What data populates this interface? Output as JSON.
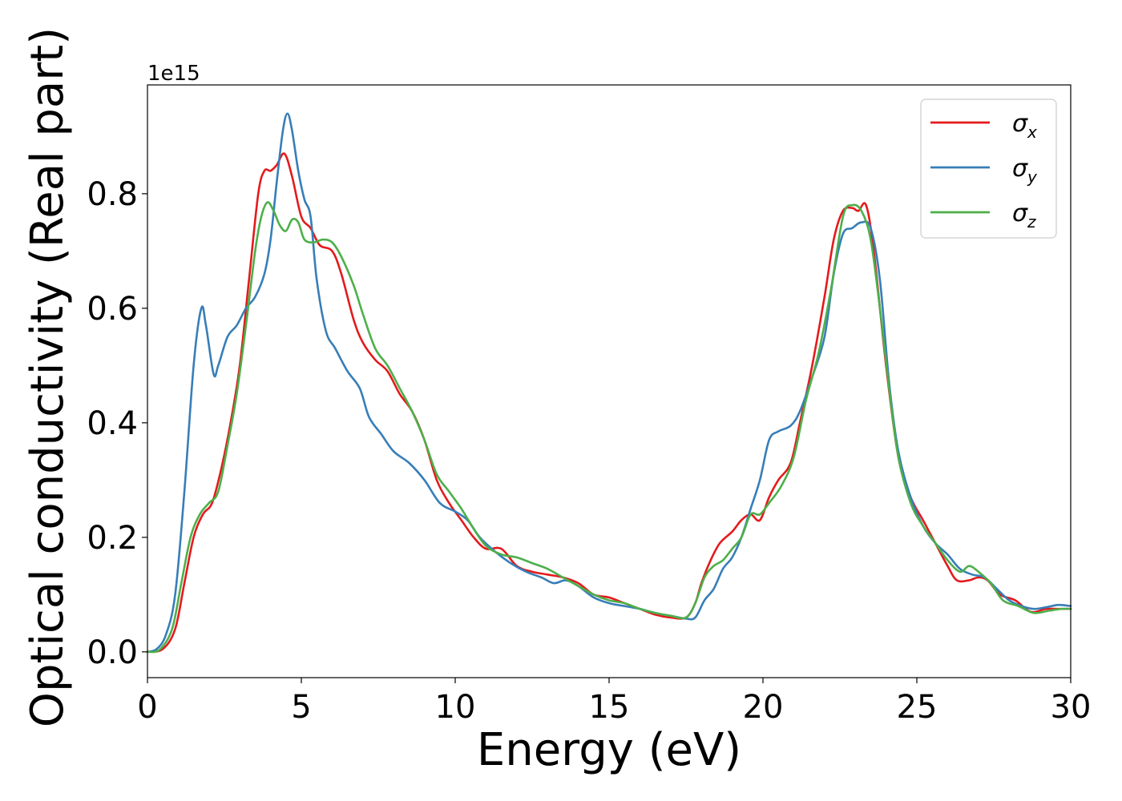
{
  "chart_data": {
    "type": "line",
    "xlabel": "Energy (eV)",
    "ylabel": "Optical conductivity (Real part)",
    "y_offset_text": "1e15",
    "xlim": [
      0,
      30
    ],
    "ylim": [
      -0.045,
      0.99
    ],
    "x_ticks": [
      0,
      5,
      10,
      15,
      20,
      25,
      30
    ],
    "x_tick_labels": [
      "0",
      "5",
      "10",
      "15",
      "20",
      "25",
      "30"
    ],
    "y_ticks": [
      0.0,
      0.2,
      0.4,
      0.6,
      0.8
    ],
    "y_tick_labels": [
      "0.0",
      "0.2",
      "0.4",
      "0.6",
      "0.8"
    ],
    "grid": false,
    "legend_position": "top-right",
    "series": [
      {
        "name": "σx",
        "label_symbol": "σ",
        "label_sub": "x",
        "color": "#e41a1c",
        "points": [
          [
            0,
            0
          ],
          [
            0.5,
            0.005
          ],
          [
            0.9,
            0.04
          ],
          [
            1.2,
            0.12
          ],
          [
            1.5,
            0.2
          ],
          [
            1.8,
            0.24
          ],
          [
            2.1,
            0.26
          ],
          [
            2.4,
            0.32
          ],
          [
            2.7,
            0.4
          ],
          [
            3.0,
            0.5
          ],
          [
            3.3,
            0.65
          ],
          [
            3.6,
            0.8
          ],
          [
            3.8,
            0.84
          ],
          [
            4.0,
            0.84
          ],
          [
            4.2,
            0.85
          ],
          [
            4.45,
            0.87
          ],
          [
            4.7,
            0.83
          ],
          [
            5.0,
            0.76
          ],
          [
            5.3,
            0.74
          ],
          [
            5.6,
            0.71
          ],
          [
            6.0,
            0.7
          ],
          [
            6.3,
            0.66
          ],
          [
            6.7,
            0.58
          ],
          [
            7.0,
            0.54
          ],
          [
            7.4,
            0.51
          ],
          [
            7.8,
            0.49
          ],
          [
            8.2,
            0.45
          ],
          [
            8.6,
            0.42
          ],
          [
            9.0,
            0.37
          ],
          [
            9.4,
            0.3
          ],
          [
            9.8,
            0.26
          ],
          [
            10.2,
            0.23
          ],
          [
            10.6,
            0.2
          ],
          [
            11.0,
            0.18
          ],
          [
            11.5,
            0.18
          ],
          [
            12.0,
            0.15
          ],
          [
            12.5,
            0.14
          ],
          [
            13.0,
            0.135
          ],
          [
            13.5,
            0.13
          ],
          [
            14.0,
            0.12
          ],
          [
            14.5,
            0.1
          ],
          [
            15.0,
            0.095
          ],
          [
            15.5,
            0.085
          ],
          [
            16.0,
            0.075
          ],
          [
            16.5,
            0.065
          ],
          [
            17.0,
            0.06
          ],
          [
            17.5,
            0.06
          ],
          [
            17.8,
            0.085
          ],
          [
            18.0,
            0.12
          ],
          [
            18.3,
            0.16
          ],
          [
            18.6,
            0.19
          ],
          [
            19.0,
            0.21
          ],
          [
            19.3,
            0.23
          ],
          [
            19.6,
            0.24
          ],
          [
            19.9,
            0.23
          ],
          [
            20.2,
            0.27
          ],
          [
            20.5,
            0.3
          ],
          [
            20.9,
            0.33
          ],
          [
            21.2,
            0.4
          ],
          [
            21.6,
            0.5
          ],
          [
            22.0,
            0.62
          ],
          [
            22.3,
            0.72
          ],
          [
            22.6,
            0.77
          ],
          [
            22.9,
            0.775
          ],
          [
            23.1,
            0.77
          ],
          [
            23.35,
            0.78
          ],
          [
            23.6,
            0.7
          ],
          [
            24.0,
            0.5
          ],
          [
            24.4,
            0.34
          ],
          [
            24.8,
            0.27
          ],
          [
            25.2,
            0.23
          ],
          [
            25.6,
            0.19
          ],
          [
            26.0,
            0.15
          ],
          [
            26.3,
            0.125
          ],
          [
            26.7,
            0.125
          ],
          [
            27.0,
            0.13
          ],
          [
            27.3,
            0.125
          ],
          [
            27.7,
            0.1
          ],
          [
            28.2,
            0.09
          ],
          [
            28.7,
            0.07
          ],
          [
            29.2,
            0.075
          ],
          [
            29.6,
            0.075
          ],
          [
            30.0,
            0.075
          ]
        ]
      },
      {
        "name": "σy",
        "label_symbol": "σ",
        "label_sub": "y",
        "color": "#377eb8",
        "points": [
          [
            0,
            0
          ],
          [
            0.3,
            0.005
          ],
          [
            0.6,
            0.03
          ],
          [
            0.9,
            0.1
          ],
          [
            1.2,
            0.28
          ],
          [
            1.5,
            0.5
          ],
          [
            1.75,
            0.6
          ],
          [
            1.9,
            0.57
          ],
          [
            2.15,
            0.485
          ],
          [
            2.3,
            0.5
          ],
          [
            2.6,
            0.55
          ],
          [
            2.9,
            0.57
          ],
          [
            3.2,
            0.6
          ],
          [
            3.5,
            0.62
          ],
          [
            3.8,
            0.66
          ],
          [
            4.0,
            0.72
          ],
          [
            4.2,
            0.82
          ],
          [
            4.4,
            0.91
          ],
          [
            4.55,
            0.94
          ],
          [
            4.7,
            0.91
          ],
          [
            4.9,
            0.84
          ],
          [
            5.1,
            0.79
          ],
          [
            5.3,
            0.76
          ],
          [
            5.5,
            0.65
          ],
          [
            5.8,
            0.56
          ],
          [
            6.1,
            0.53
          ],
          [
            6.5,
            0.49
          ],
          [
            6.9,
            0.46
          ],
          [
            7.2,
            0.41
          ],
          [
            7.6,
            0.38
          ],
          [
            8.0,
            0.35
          ],
          [
            8.5,
            0.33
          ],
          [
            9.0,
            0.3
          ],
          [
            9.5,
            0.26
          ],
          [
            10.0,
            0.245
          ],
          [
            10.4,
            0.23
          ],
          [
            10.8,
            0.2
          ],
          [
            11.3,
            0.175
          ],
          [
            11.8,
            0.155
          ],
          [
            12.3,
            0.14
          ],
          [
            12.8,
            0.13
          ],
          [
            13.2,
            0.12
          ],
          [
            13.6,
            0.125
          ],
          [
            14.0,
            0.115
          ],
          [
            14.5,
            0.095
          ],
          [
            15.0,
            0.085
          ],
          [
            15.5,
            0.08
          ],
          [
            16.0,
            0.075
          ],
          [
            16.5,
            0.068
          ],
          [
            17.0,
            0.063
          ],
          [
            17.5,
            0.058
          ],
          [
            17.8,
            0.06
          ],
          [
            18.1,
            0.09
          ],
          [
            18.4,
            0.11
          ],
          [
            18.7,
            0.145
          ],
          [
            19.0,
            0.165
          ],
          [
            19.3,
            0.2
          ],
          [
            19.6,
            0.25
          ],
          [
            19.9,
            0.3
          ],
          [
            20.2,
            0.37
          ],
          [
            20.5,
            0.385
          ],
          [
            20.9,
            0.395
          ],
          [
            21.2,
            0.42
          ],
          [
            21.6,
            0.48
          ],
          [
            22.0,
            0.55
          ],
          [
            22.3,
            0.66
          ],
          [
            22.6,
            0.73
          ],
          [
            22.9,
            0.74
          ],
          [
            23.2,
            0.75
          ],
          [
            23.5,
            0.74
          ],
          [
            23.8,
            0.65
          ],
          [
            24.1,
            0.47
          ],
          [
            24.4,
            0.35
          ],
          [
            24.8,
            0.27
          ],
          [
            25.2,
            0.22
          ],
          [
            25.6,
            0.19
          ],
          [
            26.0,
            0.17
          ],
          [
            26.4,
            0.145
          ],
          [
            26.8,
            0.135
          ],
          [
            27.2,
            0.13
          ],
          [
            27.6,
            0.11
          ],
          [
            28.0,
            0.09
          ],
          [
            28.4,
            0.08
          ],
          [
            28.8,
            0.075
          ],
          [
            29.2,
            0.078
          ],
          [
            29.6,
            0.082
          ],
          [
            30.0,
            0.08
          ]
        ]
      },
      {
        "name": "σz",
        "label_symbol": "σ",
        "label_sub": "z",
        "color": "#4daf4a",
        "points": [
          [
            0,
            0
          ],
          [
            0.4,
            0.004
          ],
          [
            0.8,
            0.04
          ],
          [
            1.1,
            0.12
          ],
          [
            1.4,
            0.2
          ],
          [
            1.7,
            0.24
          ],
          [
            2.0,
            0.26
          ],
          [
            2.3,
            0.28
          ],
          [
            2.6,
            0.36
          ],
          [
            2.9,
            0.45
          ],
          [
            3.2,
            0.57
          ],
          [
            3.5,
            0.7
          ],
          [
            3.7,
            0.76
          ],
          [
            3.9,
            0.785
          ],
          [
            4.1,
            0.77
          ],
          [
            4.3,
            0.745
          ],
          [
            4.5,
            0.735
          ],
          [
            4.7,
            0.755
          ],
          [
            4.9,
            0.75
          ],
          [
            5.1,
            0.72
          ],
          [
            5.4,
            0.715
          ],
          [
            5.7,
            0.72
          ],
          [
            6.0,
            0.715
          ],
          [
            6.3,
            0.69
          ],
          [
            6.7,
            0.64
          ],
          [
            7.0,
            0.59
          ],
          [
            7.4,
            0.53
          ],
          [
            7.8,
            0.5
          ],
          [
            8.2,
            0.46
          ],
          [
            8.6,
            0.42
          ],
          [
            9.0,
            0.37
          ],
          [
            9.4,
            0.31
          ],
          [
            9.8,
            0.28
          ],
          [
            10.2,
            0.25
          ],
          [
            10.6,
            0.215
          ],
          [
            11.0,
            0.185
          ],
          [
            11.5,
            0.17
          ],
          [
            12.0,
            0.165
          ],
          [
            12.5,
            0.155
          ],
          [
            13.0,
            0.145
          ],
          [
            13.5,
            0.13
          ],
          [
            14.0,
            0.115
          ],
          [
            14.5,
            0.1
          ],
          [
            15.0,
            0.09
          ],
          [
            15.5,
            0.085
          ],
          [
            16.0,
            0.075
          ],
          [
            16.5,
            0.068
          ],
          [
            17.0,
            0.063
          ],
          [
            17.5,
            0.06
          ],
          [
            17.8,
            0.085
          ],
          [
            18.1,
            0.13
          ],
          [
            18.4,
            0.15
          ],
          [
            18.7,
            0.16
          ],
          [
            19.0,
            0.18
          ],
          [
            19.3,
            0.2
          ],
          [
            19.6,
            0.24
          ],
          [
            19.9,
            0.24
          ],
          [
            20.2,
            0.26
          ],
          [
            20.6,
            0.29
          ],
          [
            21.0,
            0.34
          ],
          [
            21.4,
            0.44
          ],
          [
            21.8,
            0.52
          ],
          [
            22.2,
            0.63
          ],
          [
            22.6,
            0.76
          ],
          [
            22.9,
            0.78
          ],
          [
            23.2,
            0.77
          ],
          [
            23.5,
            0.72
          ],
          [
            23.8,
            0.6
          ],
          [
            24.1,
            0.46
          ],
          [
            24.4,
            0.34
          ],
          [
            24.8,
            0.26
          ],
          [
            25.2,
            0.22
          ],
          [
            25.6,
            0.19
          ],
          [
            26.0,
            0.16
          ],
          [
            26.4,
            0.14
          ],
          [
            26.7,
            0.15
          ],
          [
            27.0,
            0.14
          ],
          [
            27.4,
            0.12
          ],
          [
            27.8,
            0.09
          ],
          [
            28.3,
            0.08
          ],
          [
            28.8,
            0.068
          ],
          [
            29.3,
            0.072
          ],
          [
            29.7,
            0.075
          ],
          [
            30.0,
            0.075
          ]
        ]
      }
    ]
  }
}
